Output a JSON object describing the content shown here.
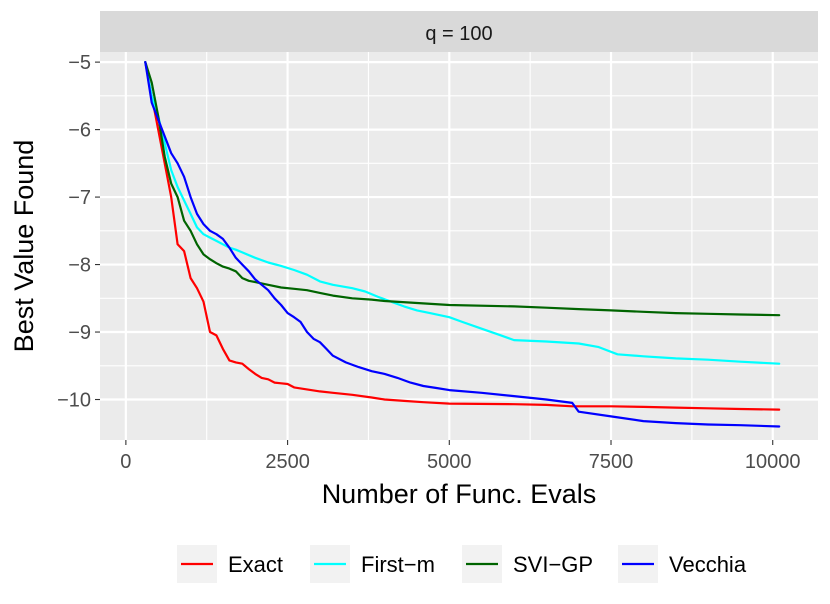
{
  "chart_data": {
    "type": "line",
    "facet_label": "q = 100",
    "xlabel": "Number of Func. Evals",
    "ylabel": "Best Value Found",
    "xlim": [
      -400,
      10700
    ],
    "ylim": [
      -10.6,
      -4.85
    ],
    "xticks": [
      0,
      2500,
      5000,
      7500,
      10000
    ],
    "xtick_labels": [
      "0",
      "2500",
      "5000",
      "7500",
      "10000"
    ],
    "yticks": [
      -10,
      -9,
      -8,
      -7,
      -6,
      -5
    ],
    "ytick_labels": [
      "−10",
      "−9",
      "−8",
      "−7",
      "−6",
      "−5"
    ],
    "legend_position": "bottom",
    "series": [
      {
        "name": "Exact",
        "color": "#ff0000",
        "x": [
          300,
          400,
          500,
          600,
          700,
          800,
          900,
          1000,
          1100,
          1200,
          1300,
          1400,
          1500,
          1600,
          1700,
          1800,
          1900,
          2000,
          2100,
          2200,
          2300,
          2400,
          2500,
          2600,
          2800,
          3000,
          3200,
          3500,
          3800,
          4000,
          4300,
          4600,
          5000,
          6000,
          6500,
          6900,
          7500,
          8000,
          8500,
          9000,
          9500,
          10100
        ],
        "y": [
          -5.0,
          -5.5,
          -6.0,
          -6.5,
          -7.0,
          -7.7,
          -7.8,
          -8.2,
          -8.35,
          -8.55,
          -9.0,
          -9.05,
          -9.25,
          -9.42,
          -9.45,
          -9.47,
          -9.55,
          -9.62,
          -9.68,
          -9.7,
          -9.75,
          -9.76,
          -9.77,
          -9.82,
          -9.85,
          -9.88,
          -9.9,
          -9.93,
          -9.97,
          -10.0,
          -10.02,
          -10.04,
          -10.06,
          -10.07,
          -10.08,
          -10.1,
          -10.1,
          -10.11,
          -10.12,
          -10.13,
          -10.14,
          -10.15
        ]
      },
      {
        "name": "First−m",
        "color": "#00ffff",
        "x": [
          300,
          400,
          500,
          600,
          700,
          800,
          900,
          1000,
          1100,
          1200,
          1300,
          1400,
          1500,
          1600,
          1700,
          1800,
          2000,
          2200,
          2400,
          2600,
          2800,
          3000,
          3200,
          3500,
          3700,
          3900,
          4100,
          4300,
          4500,
          4700,
          5000,
          5200,
          5500,
          5800,
          6000,
          6500,
          7000,
          7300,
          7600,
          8000,
          8500,
          9000,
          9500,
          10100
        ],
        "y": [
          -5.0,
          -5.5,
          -5.8,
          -6.2,
          -6.6,
          -6.85,
          -7.05,
          -7.25,
          -7.45,
          -7.55,
          -7.6,
          -7.65,
          -7.7,
          -7.75,
          -7.78,
          -7.82,
          -7.9,
          -7.97,
          -8.02,
          -8.08,
          -8.15,
          -8.25,
          -8.3,
          -8.35,
          -8.4,
          -8.48,
          -8.55,
          -8.62,
          -8.68,
          -8.72,
          -8.78,
          -8.85,
          -8.95,
          -9.05,
          -9.12,
          -9.14,
          -9.17,
          -9.22,
          -9.33,
          -9.36,
          -9.39,
          -9.41,
          -9.44,
          -9.47
        ]
      },
      {
        "name": "SVI−GP",
        "color": "#006400",
        "x": [
          300,
          400,
          500,
          600,
          700,
          800,
          900,
          1000,
          1100,
          1200,
          1300,
          1400,
          1500,
          1600,
          1700,
          1800,
          1900,
          2000,
          2200,
          2400,
          2600,
          2800,
          3000,
          3200,
          3500,
          3800,
          4000,
          4500,
          5000,
          6000,
          6500,
          7000,
          7500,
          8000,
          8500,
          9000,
          9500,
          10100
        ],
        "y": [
          -5.0,
          -5.3,
          -5.8,
          -6.4,
          -6.8,
          -7.0,
          -7.35,
          -7.5,
          -7.7,
          -7.85,
          -7.92,
          -7.98,
          -8.03,
          -8.06,
          -8.1,
          -8.2,
          -8.24,
          -8.26,
          -8.3,
          -8.34,
          -8.36,
          -8.38,
          -8.42,
          -8.46,
          -8.5,
          -8.52,
          -8.54,
          -8.57,
          -8.6,
          -8.62,
          -8.64,
          -8.66,
          -8.68,
          -8.7,
          -8.72,
          -8.73,
          -8.74,
          -8.75
        ]
      },
      {
        "name": "Vecchia",
        "color": "#0000ff",
        "x": [
          300,
          400,
          500,
          600,
          700,
          800,
          900,
          1000,
          1100,
          1200,
          1300,
          1400,
          1500,
          1600,
          1700,
          1800,
          1900,
          2000,
          2100,
          2200,
          2300,
          2400,
          2500,
          2600,
          2700,
          2800,
          2900,
          3000,
          3100,
          3200,
          3400,
          3600,
          3800,
          4000,
          4200,
          4400,
          4600,
          4800,
          5000,
          5500,
          6000,
          6500,
          6900,
          7000,
          7500,
          8000,
          8500,
          9000,
          9500,
          10100
        ],
        "y": [
          -5.0,
          -5.6,
          -5.85,
          -6.1,
          -6.35,
          -6.5,
          -6.7,
          -7.0,
          -7.25,
          -7.4,
          -7.5,
          -7.55,
          -7.62,
          -7.75,
          -7.9,
          -8.0,
          -8.1,
          -8.22,
          -8.3,
          -8.38,
          -8.5,
          -8.6,
          -8.72,
          -8.78,
          -8.85,
          -9.0,
          -9.1,
          -9.15,
          -9.25,
          -9.35,
          -9.45,
          -9.52,
          -9.58,
          -9.62,
          -9.68,
          -9.75,
          -9.8,
          -9.83,
          -9.86,
          -9.9,
          -9.95,
          -10.0,
          -10.05,
          -10.18,
          -10.25,
          -10.32,
          -10.35,
          -10.37,
          -10.38,
          -10.4
        ]
      }
    ]
  }
}
